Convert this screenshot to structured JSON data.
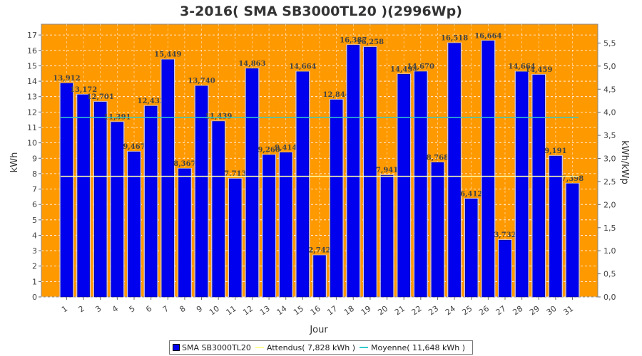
{
  "colors": {
    "plot_bg": "#FF9900",
    "bar": "#0000EE",
    "bar_highlight": "#C8C8FF",
    "attendus_line": "#FFFFAA",
    "moyenne_line": "#33CCCC",
    "grid": "#FFFFFF"
  },
  "chart_data": {
    "type": "bar",
    "title": "3-2016( SMA SB3000TL20 )(2996Wp)",
    "xlabel": "Jour",
    "ylabel": "kWh",
    "y2label": "kWh/kWp",
    "ylim": [
      0,
      17.7
    ],
    "yticks": [
      0,
      1,
      2,
      3,
      4,
      5,
      6,
      7,
      8,
      9,
      10,
      11,
      12,
      13,
      14,
      15,
      16,
      17
    ],
    "y2ticks": [
      "0,0",
      "0,5",
      "1,0",
      "1,5",
      "2,0",
      "2,5",
      "3,0",
      "3,5",
      "4,0",
      "4,5",
      "5,0",
      "5,5"
    ],
    "categories": [
      "1",
      "2",
      "3",
      "4",
      "5",
      "6",
      "7",
      "8",
      "9",
      "10",
      "11",
      "12",
      "13",
      "14",
      "15",
      "16",
      "17",
      "18",
      "19",
      "20",
      "21",
      "22",
      "23",
      "24",
      "25",
      "26",
      "27",
      "28",
      "29",
      "30",
      "31"
    ],
    "series": [
      {
        "name": "SMA SB3000TL20",
        "values": [
          13.912,
          13.172,
          12.701,
          11.391,
          9.467,
          12.432,
          15.449,
          8.367,
          13.74,
          11.439,
          7.713,
          14.863,
          9.26,
          9.414,
          14.664,
          2.742,
          12.844,
          16.387,
          16.258,
          7.941,
          14.494,
          14.67,
          8.768,
          16.518,
          6.412,
          16.664,
          3.732,
          14.664,
          14.459,
          9.191,
          7.398
        ],
        "labels": [
          "13,912",
          "13,172",
          "12,701",
          "11,391",
          "9,467",
          "12,432",
          "15,449",
          "8,367",
          "13,740",
          "11,439",
          "7,713",
          "14,863",
          "9,260",
          "9,414",
          "14,664",
          "2,742",
          "12,844",
          "16,387",
          "16,258",
          "7,941",
          "14,494",
          "14,670",
          "8,768",
          "16,518",
          "6,412",
          "16,664",
          "3,732",
          "14,664",
          "14,459",
          "9,191",
          "7,398"
        ]
      }
    ],
    "lines": [
      {
        "name": "Attendus",
        "value": 7.828
      },
      {
        "name": "Moyenne",
        "value": 11.648
      }
    ],
    "grid": true,
    "legend": {
      "position": "bottom",
      "items": [
        {
          "label": "SMA SB3000TL20",
          "kind": "box",
          "color": "#0000EE"
        },
        {
          "label": "Attendus( 7,828 kWh )",
          "kind": "line",
          "color": "#FFFF99"
        },
        {
          "label": "Moyenne( 11,648 kWh )",
          "kind": "line",
          "color": "#33CCCC"
        }
      ]
    }
  }
}
